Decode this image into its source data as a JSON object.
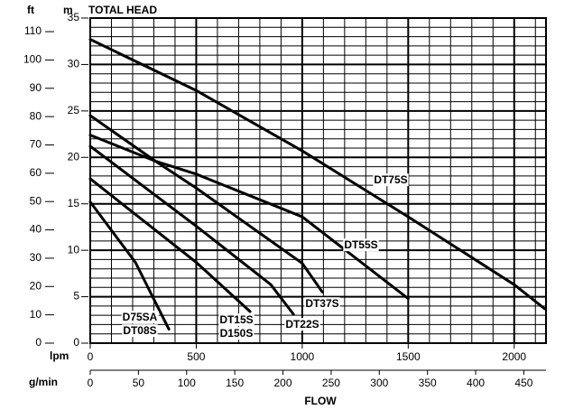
{
  "chart_data": {
    "type": "line",
    "title": "TOTAL HEAD",
    "x_label": "FLOW",
    "y_unit": "m",
    "y2_unit": "ft",
    "x_unit": "lpm",
    "x2_unit": "g/min",
    "xlim": [
      0,
      2150
    ],
    "xticks": [
      0,
      500,
      1000,
      1500,
      2000
    ],
    "x2lim": [
      0,
      473
    ],
    "x2ticks": [
      0,
      50,
      100,
      150,
      200,
      250,
      300,
      350,
      400,
      450
    ],
    "ylim": [
      0,
      35
    ],
    "yticks": [
      0,
      5,
      10,
      15,
      20,
      25,
      30,
      35
    ],
    "y2lim": [
      0,
      114.8
    ],
    "y2ticks": [
      0,
      10,
      20,
      30,
      40,
      50,
      60,
      70,
      80,
      90,
      100,
      110
    ],
    "grid": true,
    "color": "#000000",
    "series": [
      {
        "names": [
          "DT75S"
        ],
        "x": [
          0,
          500,
          1000,
          1500,
          2000,
          2144
        ],
        "values": [
          32.7,
          27.2,
          20.7,
          13.6,
          6.3,
          3.7
        ]
      },
      {
        "names": [
          "DT55S"
        ],
        "x": [
          0,
          307,
          500,
          1000,
          1500
        ],
        "values": [
          24.5,
          19.6,
          18.2,
          13.6,
          4.8
        ]
      },
      {
        "names": [
          "DT37S"
        ],
        "x": [
          0,
          307,
          500,
          1000,
          1095
        ],
        "values": [
          22.4,
          19.6,
          16.7,
          8.6,
          5.5
        ]
      },
      {
        "names": [
          "DT22S"
        ],
        "x": [
          0,
          500,
          852,
          959
        ],
        "values": [
          21.2,
          12.6,
          6.3,
          3.1
        ]
      },
      {
        "names": [
          "DT15S",
          "D150S"
        ],
        "x": [
          0,
          500,
          754
        ],
        "values": [
          17.7,
          8.7,
          3.4
        ]
      },
      {
        "names": [
          "D75SA",
          "DT08S"
        ],
        "x": [
          0,
          213,
          371
        ],
        "values": [
          15.2,
          8.7,
          1.5
        ]
      }
    ]
  }
}
